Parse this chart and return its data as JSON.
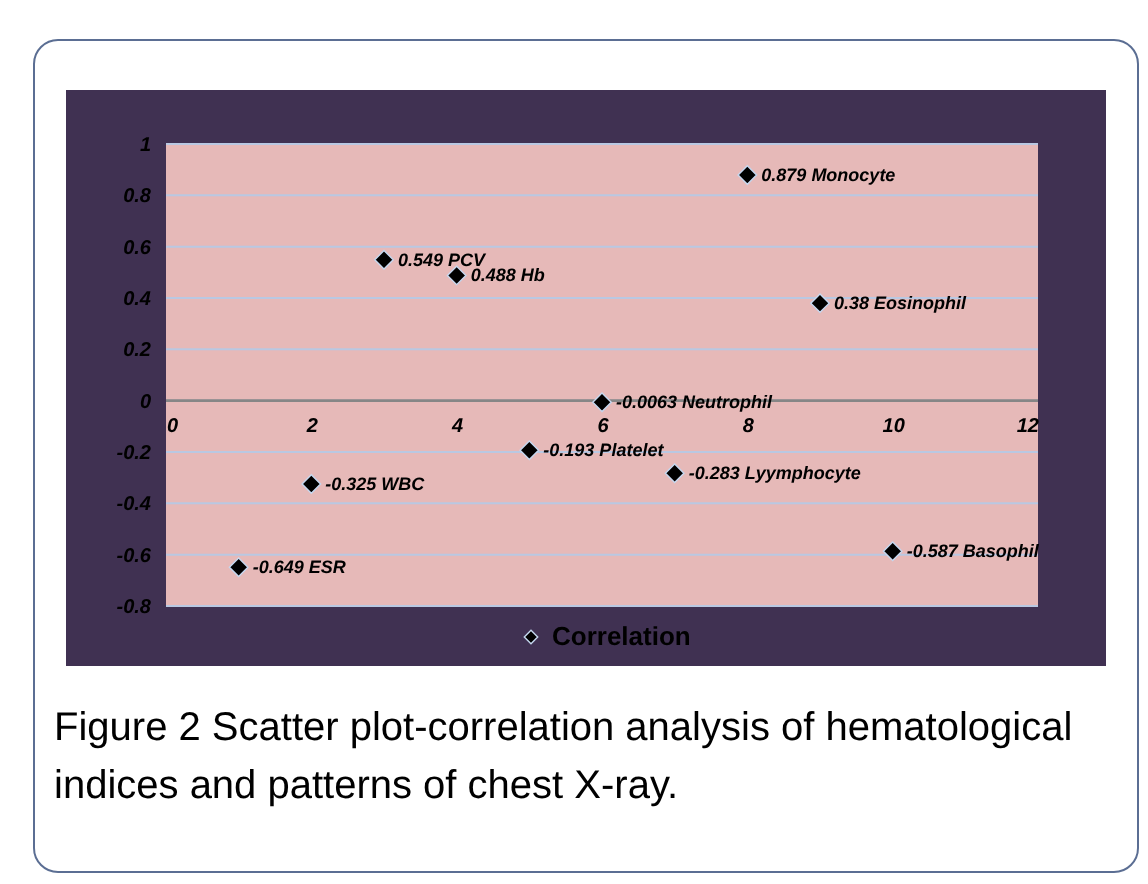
{
  "chart_data": {
    "type": "scatter",
    "title": "Figure 2 Scatter plot-correlation analysis of hematological indices and patterns of chest X-ray.",
    "x": [
      1,
      2,
      3,
      4,
      5,
      6,
      7,
      8,
      9,
      10
    ],
    "series": [
      {
        "name": "Correlation",
        "color": "#000000",
        "values": [
          -0.649,
          -0.325,
          0.549,
          0.488,
          -0.193,
          -0.0063,
          -0.283,
          0.879,
          0.38,
          -0.587
        ],
        "value_labels": [
          "-0.649 ESR",
          "-0.325 WBC",
          "0.549 PCV",
          "0.488 Hb",
          "-0.193 Platelet",
          "-0.0063 Neutrophil",
          "-0.283 Lyymphocyte",
          "0.879 Monocyte",
          "0.38 Eosinophil",
          "-0.587 Basophil"
        ]
      }
    ],
    "xlim": [
      0,
      12
    ],
    "xticks": [
      0,
      2,
      4,
      6,
      8,
      10,
      12
    ],
    "ylim": [
      -0.8,
      1
    ],
    "yticks": [
      -0.8,
      -0.6,
      -0.4,
      -0.2,
      0,
      0.2,
      0.4,
      0.6,
      0.8,
      1
    ],
    "grid": "y",
    "legend": "bottom",
    "marker": "diamond"
  }
}
